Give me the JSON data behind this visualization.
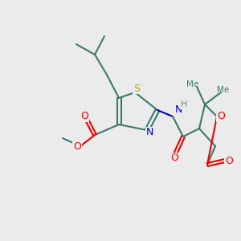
{
  "background_color": "#ebebeb",
  "fig_size": [
    3.0,
    3.0
  ],
  "dpi": 100,
  "bond_color": "#3a7a6a",
  "bond_lw": 1.5,
  "colors": {
    "N": "#0000cc",
    "O": "#ee0000",
    "S": "#bbaa00",
    "C": "#3a7a6a",
    "H": "#5a9090"
  },
  "font_size": 8.5,
  "font_family": "DejaVu Sans"
}
